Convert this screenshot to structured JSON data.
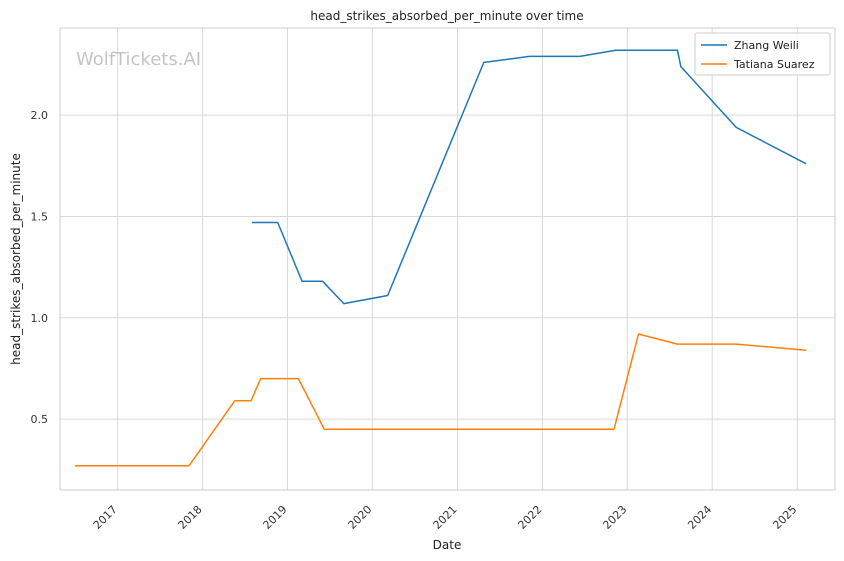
{
  "chart_data": {
    "type": "line",
    "title": "head_strikes_absorbed_per_minute over time",
    "xlabel": "Date",
    "ylabel": "head_strikes_absorbed_per_minute",
    "watermark": "WolfTickets.AI",
    "x_ticks": [
      "2017",
      "2018",
      "2019",
      "2020",
      "2021",
      "2022",
      "2023",
      "2024",
      "2025"
    ],
    "y_ticks": [
      "0.5",
      "1.0",
      "1.5",
      "2.0"
    ],
    "y_tick_values": [
      0.5,
      1.0,
      1.5,
      2.0
    ],
    "xlim": [
      "2016-04-28",
      "2025-06-12"
    ],
    "ylim": [
      0.15,
      2.43
    ],
    "grid": true,
    "legend_position": "top-right",
    "series": [
      {
        "name": "Zhang Weili",
        "color": "#1f77b4",
        "points": [
          [
            "2018-08-01",
            1.47
          ],
          [
            "2018-11-20",
            1.47
          ],
          [
            "2019-03-05",
            1.18
          ],
          [
            "2019-06-01",
            1.18
          ],
          [
            "2019-08-31",
            1.07
          ],
          [
            "2020-03-07",
            1.11
          ],
          [
            "2021-04-24",
            2.26
          ],
          [
            "2021-11-06",
            2.29
          ],
          [
            "2022-06-11",
            2.29
          ],
          [
            "2022-11-12",
            2.32
          ],
          [
            "2023-08-05",
            2.32
          ],
          [
            "2023-08-19",
            2.24
          ],
          [
            "2024-04-13",
            1.94
          ],
          [
            "2025-02-08",
            1.76
          ]
        ]
      },
      {
        "name": "Tatiana Suarez",
        "color": "#ff7f0e",
        "points": [
          [
            "2016-07-01",
            0.27
          ],
          [
            "2017-11-04",
            0.27
          ],
          [
            "2018-05-19",
            0.59
          ],
          [
            "2018-07-28",
            0.59
          ],
          [
            "2018-09-08",
            0.7
          ],
          [
            "2019-02-17",
            0.7
          ],
          [
            "2019-06-08",
            0.45
          ],
          [
            "2022-11-05",
            0.45
          ],
          [
            "2023-02-18",
            0.92
          ],
          [
            "2023-08-05",
            0.87
          ],
          [
            "2024-04-13",
            0.87
          ],
          [
            "2025-02-08",
            0.84
          ]
        ]
      }
    ]
  }
}
